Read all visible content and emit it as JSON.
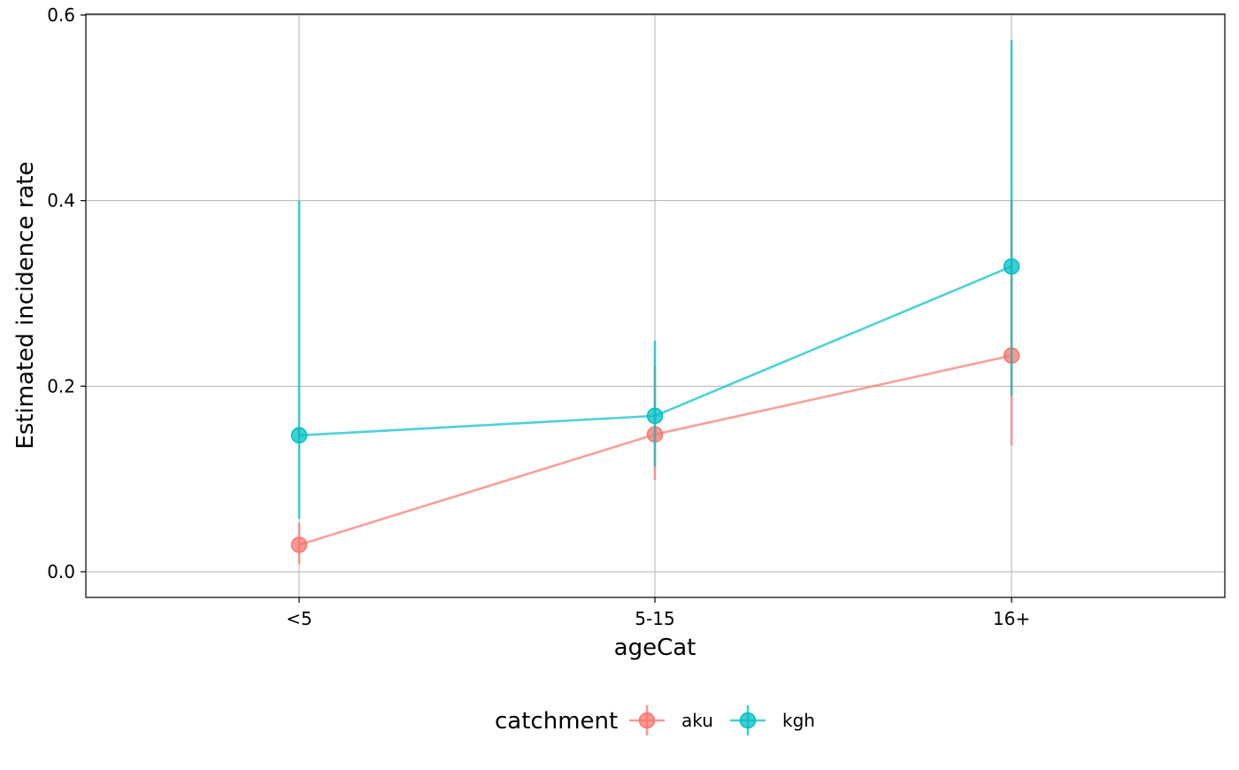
{
  "chart_data": {
    "type": "line",
    "title": "",
    "xlabel": "ageCat",
    "ylabel": "Estimated incidence rate",
    "categories": [
      "<5",
      "5-15",
      "16+"
    ],
    "ylim": [
      -0.03,
      0.6
    ],
    "yticks": [
      0.0,
      0.2,
      0.4,
      0.6
    ],
    "ytick_labels": [
      "0.0",
      "0.2",
      "0.4",
      "0.6"
    ],
    "grid": true,
    "legend": {
      "title": "catchment",
      "position": "bottom"
    },
    "series": [
      {
        "name": "aku",
        "color": "#F8766D",
        "values": [
          0.029,
          0.148,
          0.233
        ],
        "lower": [
          0.008,
          0.099,
          0.136
        ],
        "upper": [
          0.053,
          0.222,
          0.4
        ]
      },
      {
        "name": "kgh",
        "color": "#00BFC4",
        "values": [
          0.147,
          0.168,
          0.329
        ],
        "lower": [
          0.057,
          0.113,
          0.19
        ],
        "upper": [
          0.4,
          0.249,
          0.573
        ]
      }
    ]
  }
}
